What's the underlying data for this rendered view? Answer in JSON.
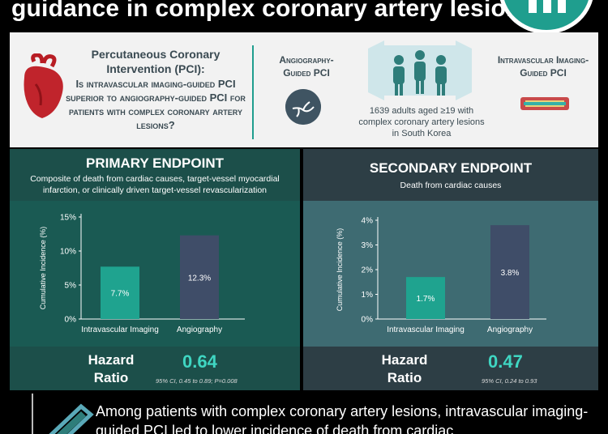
{
  "header": {
    "title": "guidance in complex coronary artery lesions"
  },
  "intro": {
    "question_title": "Percutaneous Coronary Intervention (PCI):",
    "question_body": "Is intravascular imaging-guided PCI superior to angiography-guided PCI for patients with complex coronary artery lesions?",
    "arm_left": "Angiography-Guided PCI",
    "arm_right": "Intravascular Imaging-Guided PCI",
    "population": "1639 adults aged ≥19 with complex coronary artery lesions in South Korea"
  },
  "primary": {
    "title": "PRIMARY ENDPOINT",
    "description": "Composite of death from cardiac causes, target-vessel myocardial infarction, or clinically driven target-vessel revascularization",
    "hr_label": "Hazard Ratio",
    "hr_value": "0.64",
    "hr_ci": "95% CI, 0.45 to 0.89; P=0.008"
  },
  "secondary": {
    "title": "SECONDARY ENDPOINT",
    "description": "Death from cardiac causes",
    "hr_label": "Hazard Ratio",
    "hr_value": "0.47",
    "hr_ci": "95% CI, 0.24 to 0.93"
  },
  "chart_data": [
    {
      "type": "bar",
      "categories": [
        "Intravascular Imaging",
        "Angiography"
      ],
      "values": [
        7.7,
        12.3
      ],
      "value_labels": [
        "7.7%",
        "12.3%"
      ],
      "ylabel": "Cumulative Incidence (%)",
      "yticks": [
        "0%",
        "5%",
        "10%",
        "15%"
      ],
      "ylim": [
        0,
        15
      ],
      "colors": [
        "#1fa38f",
        "#3f4d68"
      ]
    },
    {
      "type": "bar",
      "categories": [
        "Intravascular Imaging",
        "Angiography"
      ],
      "values": [
        1.7,
        3.8
      ],
      "value_labels": [
        "1.7%",
        "3.8%"
      ],
      "ylabel": "Cumulative Incidence (%)",
      "yticks": [
        "0%",
        "1%",
        "2%",
        "3%",
        "4%"
      ],
      "ylim": [
        0,
        4
      ],
      "colors": [
        "#1fa38f",
        "#3f4d68"
      ]
    }
  ],
  "conclusion": {
    "text": "Among patients with complex coronary artery lesions, intravascular imaging-guided PCI led to lower incidence of death from cardiac"
  },
  "colors": {
    "accent": "#1f9e8e",
    "primary_panel": "#1a5a53",
    "secondary_panel": "#3e6b72",
    "hr_value": "#3fd6c2"
  }
}
